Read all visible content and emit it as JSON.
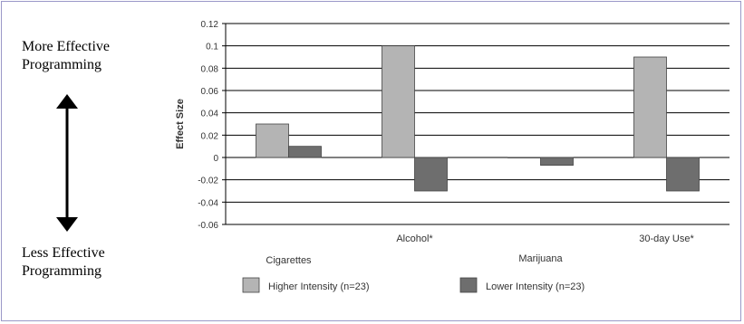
{
  "side_labels": {
    "top_line1": "More Effective",
    "top_line2": "Programming",
    "bottom_line1": "Less Effective",
    "bottom_line2": "Programming"
  },
  "chart_data": {
    "type": "bar",
    "title": "",
    "xlabel": "",
    "ylabel": "Effect Size",
    "categories": [
      "Cigarettes",
      "Alcohol*",
      "Marijuana",
      "30-day Use*"
    ],
    "series": [
      {
        "name": "Higher Intensity (n=23)",
        "values": [
          0.03,
          0.1,
          0.0,
          0.09
        ],
        "color": "#b4b4b4"
      },
      {
        "name": "Lower Intensity (n=23)",
        "values": [
          0.01,
          -0.03,
          -0.007,
          -0.03
        ],
        "color": "#6e6e6e"
      }
    ],
    "ylim": [
      -0.06,
      0.12
    ],
    "yticks": [
      "0.12",
      "0.1",
      "0.08",
      "0.06",
      "0.04",
      "0.02",
      "0",
      "-0.02",
      "-0.04",
      "-0.06"
    ],
    "grid": true,
    "legend_position": "bottom"
  },
  "colors": {
    "frame": "#9a98c8",
    "grid": "#000000"
  }
}
